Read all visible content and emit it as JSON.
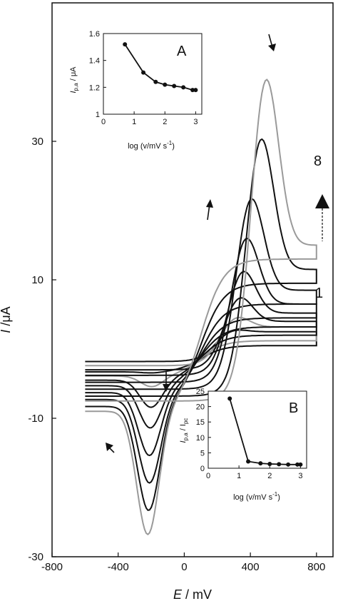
{
  "chart_data": [
    {
      "type": "line",
      "xlabel_symbol": "E",
      "xlabel_unit": " / mV",
      "ylabel_symbol": "I",
      "ylabel_unit": " /μA",
      "xlim": [
        -800,
        900
      ],
      "ylim": [
        -30,
        50
      ],
      "x_ticks": [
        -800,
        -400,
        0,
        400,
        800
      ],
      "x_tick_labels": [
        "-800",
        "-400",
        "0",
        "400",
        "800"
      ],
      "y_ticks": [
        -30,
        -10,
        10,
        30
      ],
      "y_tick_labels": [
        "-30",
        "-10",
        "10",
        "30"
      ],
      "curve_labels": [
        "1",
        "8"
      ],
      "series": [
        {
          "anodic_peak": [
            290,
            3.0
          ],
          "cathodic_peak": [
            -190,
            -3.5
          ],
          "end_current": 2.5,
          "start_current": -1.8,
          "color": "#111111"
        },
        {
          "anodic_peak": [
            310,
            5.0
          ],
          "cathodic_peak": [
            -195,
            -5.5
          ],
          "end_current": 3.2,
          "start_current": -2.4,
          "color": "#9a9a9a"
        },
        {
          "anodic_peak": [
            330,
            8.0
          ],
          "cathodic_peak": [
            -200,
            -8.5
          ],
          "end_current": 4.0,
          "start_current": -3.0,
          "color": "#111111"
        },
        {
          "anodic_peak": [
            350,
            12.0
          ],
          "cathodic_peak": [
            -205,
            -11.5
          ],
          "end_current": 5.2,
          "start_current": -3.8,
          "color": "#111111"
        },
        {
          "anodic_peak": [
            370,
            17.0
          ],
          "cathodic_peak": [
            -210,
            -15.5
          ],
          "end_current": 6.5,
          "start_current": -4.8,
          "color": "#111111"
        },
        {
          "anodic_peak": [
            400,
            23.0
          ],
          "cathodic_peak": [
            -210,
            -19.5
          ],
          "end_current": 8.5,
          "start_current": -5.8,
          "color": "#111111"
        },
        {
          "anodic_peak": [
            460,
            32.0
          ],
          "cathodic_peak": [
            -215,
            -23.5
          ],
          "end_current": 11.5,
          "start_current": -6.8,
          "color": "#111111"
        },
        {
          "anodic_peak": [
            490,
            41.0
          ],
          "cathodic_peak": [
            -220,
            -27.0
          ],
          "end_current": 15.0,
          "start_current": -7.5,
          "color": "#9a9a9a"
        }
      ]
    },
    {
      "type": "line",
      "inset": "A",
      "letter": "A",
      "ylabel_main": "I",
      "ylabel_sub": "p,a",
      "ylabel_unit": " / μA",
      "xlabel": "log (v/mV s",
      "xlabel_sup": "-1",
      "xlabel_end": ")",
      "xlim": [
        0,
        3.2
      ],
      "ylim": [
        1.0,
        1.6
      ],
      "x_ticks": [
        0,
        1,
        2,
        3
      ],
      "x_tick_labels": [
        "0",
        "1",
        "2",
        "3"
      ],
      "y_ticks": [
        1.0,
        1.2,
        1.4,
        1.6
      ],
      "y_tick_labels": [
        "1",
        "1.2",
        "1.4",
        "1.6"
      ],
      "x": [
        0.7,
        1.3,
        1.7,
        2.0,
        2.3,
        2.6,
        2.9,
        3.0
      ],
      "y": [
        1.52,
        1.31,
        1.24,
        1.22,
        1.21,
        1.2,
        1.18,
        1.18
      ]
    },
    {
      "type": "line",
      "inset": "B",
      "letter": "B",
      "ylabel_main": "I",
      "ylabel_sub": "p,a",
      "ylabel_mid": " / I",
      "ylabel_sub2": "pc",
      "xlabel": "log (v/mV s",
      "xlabel_sup": "-1",
      "xlabel_end": ")",
      "xlim": [
        0,
        3.2
      ],
      "ylim": [
        0,
        25
      ],
      "x_ticks": [
        0,
        1,
        2,
        3
      ],
      "x_tick_labels": [
        "0",
        "1",
        "2",
        "3"
      ],
      "y_ticks": [
        0,
        5,
        10,
        15,
        20,
        25
      ],
      "y_tick_labels": [
        "0",
        "5",
        "10",
        "15",
        "20",
        "25"
      ],
      "x": [
        0.7,
        1.3,
        1.7,
        2.0,
        2.3,
        2.6,
        2.9,
        3.0
      ],
      "y": [
        22.6,
        2.2,
        1.6,
        1.4,
        1.3,
        1.2,
        1.2,
        1.2
      ]
    }
  ]
}
